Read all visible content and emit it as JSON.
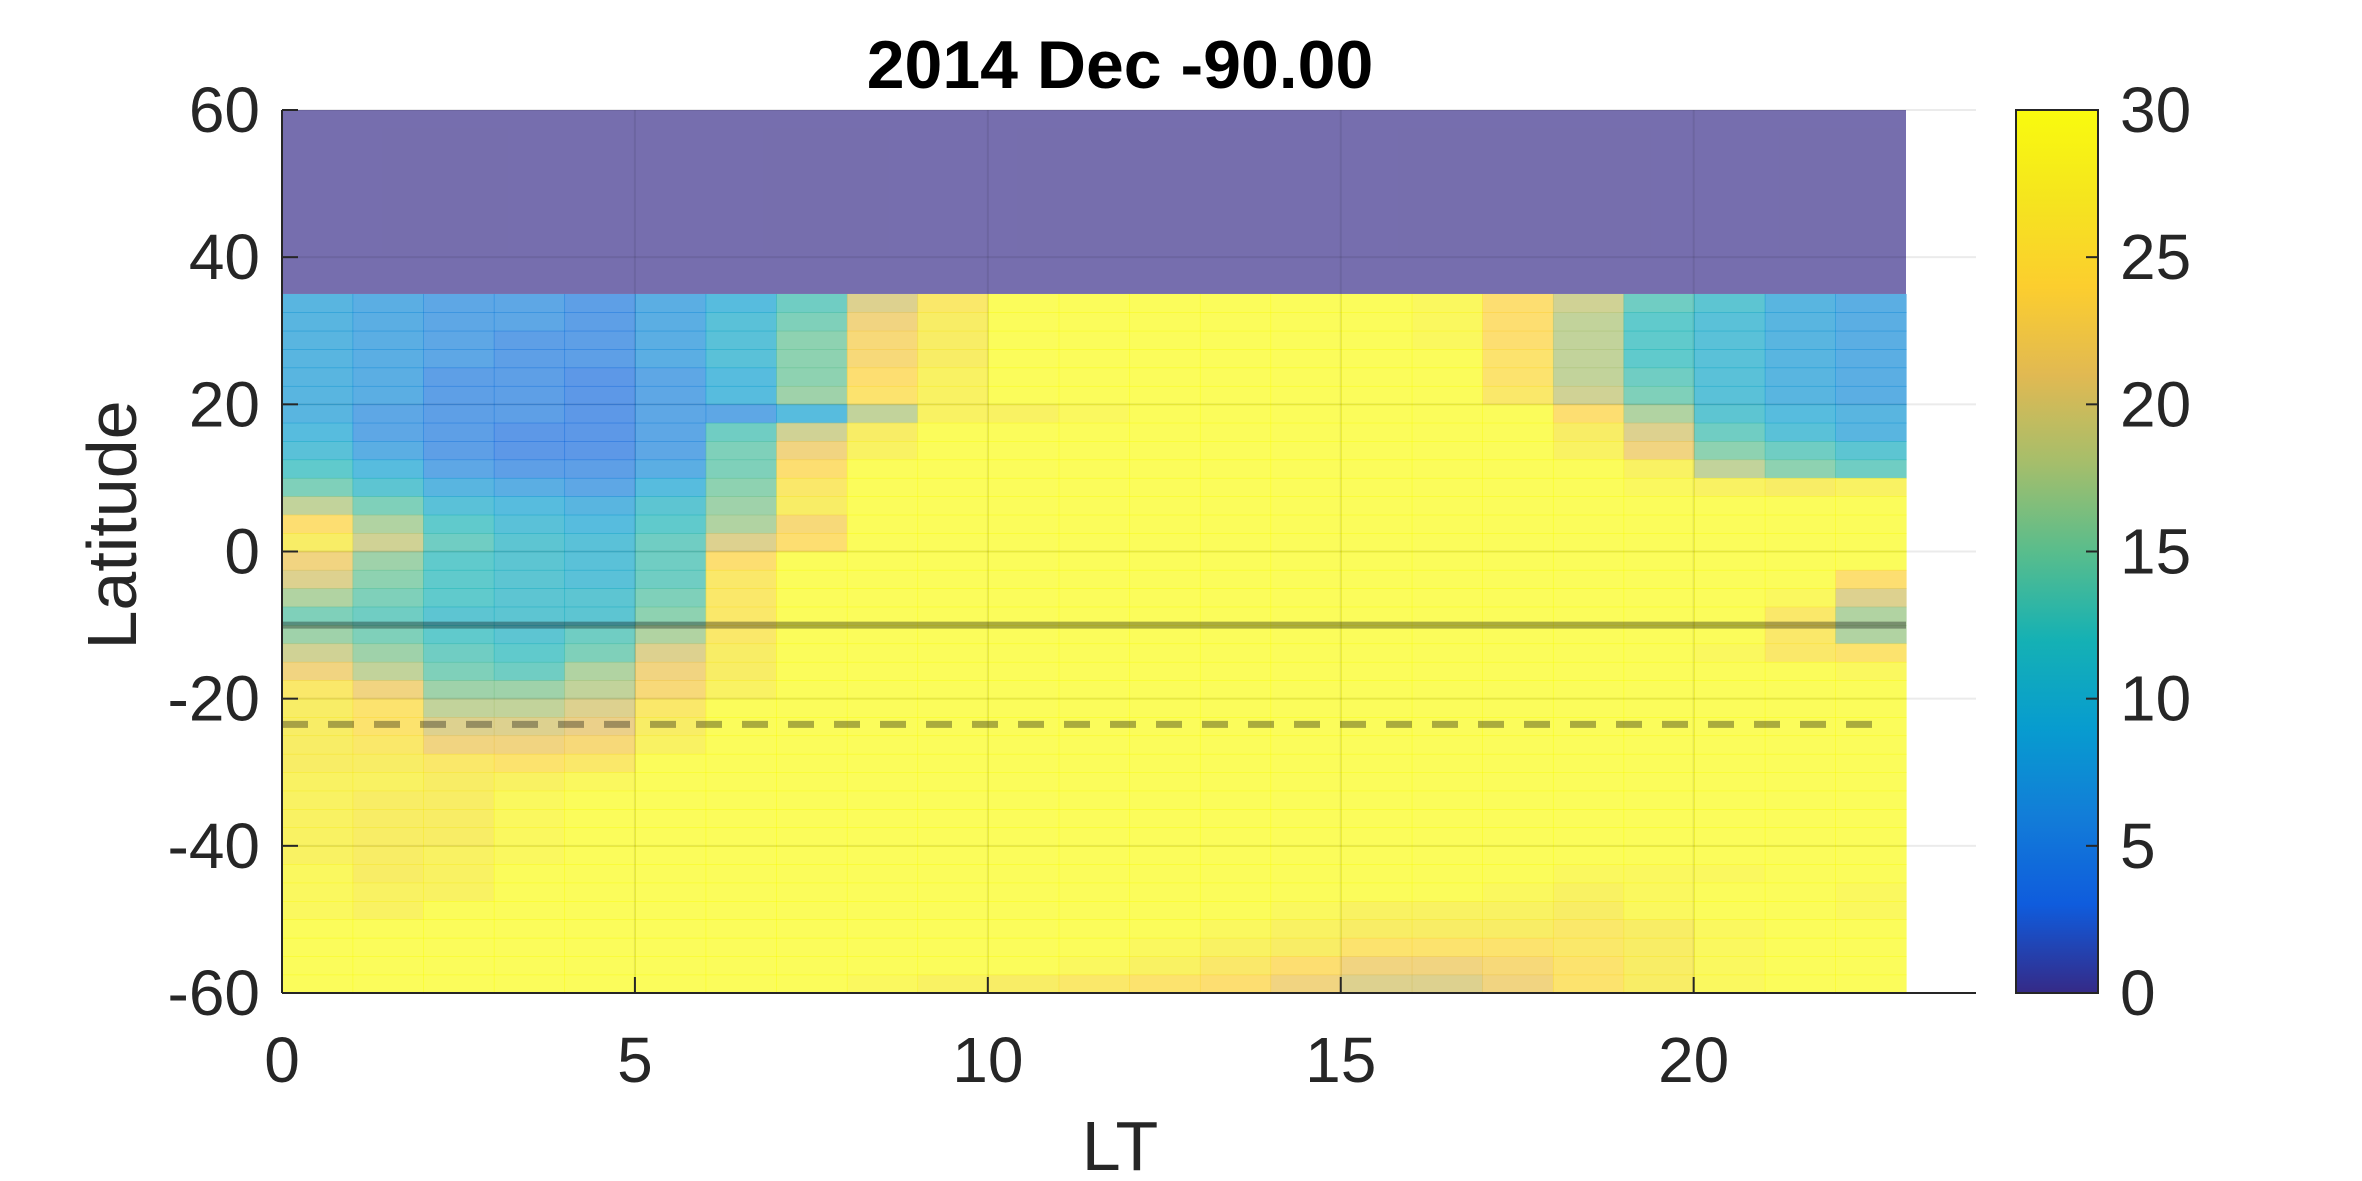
{
  "chart_data": {
    "type": "heatmap",
    "title": "2014 Dec   -90.00",
    "xlabel": "LT",
    "ylabel": "Latitude",
    "xlim": [
      0,
      24
    ],
    "ylim": [
      -60,
      60
    ],
    "x_ticks": [
      "0",
      "5",
      "10",
      "15",
      "20"
    ],
    "x_tick_values": [
      0,
      5,
      10,
      15,
      20
    ],
    "y_ticks": [
      "-60",
      "-40",
      "-20",
      "0",
      "20",
      "40",
      "60"
    ],
    "y_tick_values": [
      -60,
      -40,
      -20,
      0,
      20,
      40,
      60
    ],
    "colorbar": {
      "range": [
        0,
        30
      ],
      "ticks": [
        "0",
        "5",
        "10",
        "15",
        "20",
        "25",
        "30"
      ],
      "tick_values": [
        0,
        5,
        10,
        15,
        20,
        25,
        30
      ],
      "colormap": "parula"
    },
    "grid": true,
    "hours": [
      0,
      1,
      2,
      3,
      4,
      5,
      6,
      7,
      8,
      9,
      10,
      11,
      12,
      13,
      14,
      15,
      16,
      17,
      18,
      19,
      20,
      21,
      22
    ],
    "lat_bins": [
      35,
      32.5,
      30,
      27.5,
      25,
      22.5,
      20,
      17.5,
      15,
      12.5,
      10,
      7.5,
      5,
      2.5,
      0,
      -2.5,
      -5,
      -7.5,
      -10,
      -12.5,
      -15,
      -17.5,
      -20,
      -22.5,
      -25,
      -27.5,
      -30,
      -32.5,
      -35,
      -37.5,
      -40,
      -42.5,
      -45,
      -47.5,
      -50,
      -52.5,
      -55,
      -57.5
    ],
    "mask_above_lat": 35,
    "values": [
      [
        8,
        7,
        6,
        6,
        5,
        7,
        9,
        13,
        20,
        26,
        30,
        30,
        30,
        30,
        30,
        30,
        29,
        24,
        19,
        13,
        11,
        8,
        7
      ],
      [
        8,
        7,
        6,
        6,
        5,
        7,
        10,
        14,
        22,
        27,
        30,
        30,
        30,
        30,
        30,
        30,
        29,
        24,
        18,
        12,
        10,
        8,
        7
      ],
      [
        8,
        7,
        6,
        5,
        5,
        7,
        10,
        15,
        23,
        27,
        30,
        30,
        30,
        30,
        30,
        30,
        29,
        24,
        18,
        12,
        10,
        8,
        7
      ],
      [
        8,
        7,
        6,
        5,
        5,
        7,
        10,
        15,
        23,
        27,
        30,
        30,
        30,
        30,
        30,
        30,
        30,
        25,
        18,
        12,
        10,
        8,
        7
      ],
      [
        8,
        7,
        5,
        5,
        4,
        6,
        9,
        15,
        24,
        28,
        30,
        30,
        30,
        30,
        30,
        30,
        30,
        25,
        18,
        13,
        10,
        8,
        7
      ],
      [
        8,
        7,
        5,
        5,
        4,
        6,
        9,
        16,
        25,
        28,
        30,
        30,
        30,
        30,
        30,
        30,
        30,
        26,
        19,
        14,
        10,
        8,
        7
      ],
      [
        8,
        6,
        5,
        5,
        4,
        6,
        6,
        9,
        18,
        28,
        28,
        29,
        30,
        30,
        30,
        30,
        30,
        30,
        24,
        17,
        11,
        9,
        8
      ],
      [
        9,
        6,
        5,
        4,
        4,
        6,
        13,
        19,
        27,
        30,
        30,
        30,
        30,
        30,
        30,
        30,
        30,
        30,
        27,
        20,
        13,
        10,
        8
      ],
      [
        10,
        7,
        5,
        4,
        4,
        6,
        14,
        22,
        28,
        30,
        30,
        30,
        30,
        30,
        30,
        30,
        30,
        30,
        28,
        22,
        15,
        13,
        11
      ],
      [
        12,
        9,
        6,
        5,
        5,
        7,
        14,
        24,
        30,
        30,
        30,
        30,
        30,
        30,
        30,
        30,
        30,
        30,
        30,
        28,
        18,
        15,
        13
      ],
      [
        14,
        11,
        8,
        7,
        6,
        9,
        15,
        26,
        30,
        30,
        30,
        30,
        30,
        30,
        30,
        30,
        30,
        30,
        30,
        29,
        28,
        27,
        28
      ],
      [
        18,
        14,
        10,
        9,
        8,
        11,
        16,
        27,
        30,
        30,
        30,
        30,
        30,
        30,
        30,
        30,
        30,
        30,
        30,
        30,
        30,
        30,
        30
      ],
      [
        24,
        17,
        12,
        10,
        9,
        12,
        17,
        23,
        30,
        30,
        30,
        30,
        30,
        30,
        30,
        30,
        30,
        30,
        30,
        30,
        30,
        30,
        30
      ],
      [
        27,
        19,
        13,
        11,
        10,
        13,
        20,
        24,
        30,
        30,
        30,
        30,
        30,
        30,
        30,
        30,
        30,
        30,
        30,
        30,
        30,
        30,
        30
      ],
      [
        22,
        16,
        12,
        11,
        10,
        13,
        24,
        30,
        30,
        30,
        30,
        30,
        30,
        30,
        30,
        30,
        30,
        30,
        30,
        30,
        30,
        30,
        30
      ],
      [
        20,
        15,
        12,
        11,
        10,
        13,
        26,
        30,
        30,
        30,
        30,
        30,
        30,
        30,
        30,
        30,
        30,
        30,
        30,
        30,
        30,
        30,
        24
      ],
      [
        17,
        14,
        12,
        11,
        11,
        14,
        26,
        30,
        30,
        30,
        30,
        30,
        30,
        30,
        30,
        30,
        30,
        30,
        30,
        30,
        30,
        29,
        20
      ],
      [
        14,
        13,
        11,
        11,
        11,
        15,
        26,
        30,
        30,
        30,
        30,
        30,
        30,
        30,
        30,
        30,
        30,
        30,
        30,
        30,
        30,
        26,
        17
      ],
      [
        16,
        14,
        12,
        11,
        13,
        17,
        26,
        30,
        30,
        30,
        30,
        30,
        30,
        30,
        30,
        30,
        30,
        30,
        30,
        30,
        30,
        26,
        17
      ],
      [
        19,
        16,
        13,
        12,
        14,
        20,
        27,
        30,
        30,
        30,
        30,
        30,
        30,
        30,
        30,
        30,
        30,
        30,
        30,
        30,
        29,
        26,
        25
      ],
      [
        22,
        18,
        14,
        13,
        17,
        22,
        27,
        30,
        30,
        30,
        30,
        30,
        30,
        30,
        30,
        30,
        30,
        30,
        30,
        30,
        30,
        30,
        29
      ],
      [
        26,
        22,
        16,
        16,
        18,
        23,
        28,
        30,
        30,
        30,
        30,
        30,
        30,
        30,
        30,
        30,
        30,
        30,
        30,
        30,
        30,
        30,
        30
      ],
      [
        27,
        25,
        18,
        18,
        20,
        26,
        30,
        30,
        30,
        30,
        30,
        30,
        30,
        30,
        30,
        30,
        30,
        30,
        30,
        30,
        30,
        30,
        30
      ],
      [
        27,
        25,
        20,
        20,
        21,
        27,
        30,
        30,
        30,
        30,
        30,
        30,
        30,
        30,
        30,
        30,
        30,
        30,
        30,
        30,
        30,
        30,
        30
      ],
      [
        27,
        26,
        22,
        22,
        23,
        28,
        30,
        30,
        30,
        30,
        30,
        30,
        30,
        30,
        30,
        30,
        30,
        30,
        30,
        30,
        30,
        30,
        30
      ],
      [
        27,
        27,
        26,
        25,
        26,
        30,
        30,
        30,
        30,
        30,
        30,
        30,
        30,
        30,
        30,
        30,
        30,
        30,
        30,
        30,
        30,
        30,
        30
      ],
      [
        28,
        28,
        27,
        28,
        29,
        30,
        30,
        30,
        30,
        30,
        30,
        30,
        30,
        30,
        30,
        30,
        30,
        30,
        30,
        30,
        30,
        30,
        30
      ],
      [
        28,
        27,
        27,
        29,
        30,
        30,
        30,
        30,
        30,
        30,
        30,
        30,
        30,
        30,
        30,
        30,
        30,
        30,
        30,
        30,
        30,
        30,
        30
      ],
      [
        28,
        27,
        27,
        29,
        30,
        30,
        30,
        30,
        30,
        30,
        30,
        30,
        30,
        30,
        30,
        30,
        30,
        30,
        30,
        30,
        30,
        30,
        30
      ],
      [
        28,
        27,
        27,
        29,
        30,
        30,
        30,
        30,
        30,
        30,
        30,
        30,
        30,
        30,
        30,
        30,
        30,
        30,
        30,
        30,
        30,
        30,
        30
      ],
      [
        28,
        27,
        28,
        29,
        30,
        30,
        30,
        30,
        30,
        30,
        30,
        30,
        30,
        30,
        30,
        30,
        30,
        30,
        30,
        30,
        30,
        30,
        30
      ],
      [
        29,
        27,
        28,
        30,
        30,
        30,
        30,
        30,
        30,
        30,
        30,
        30,
        30,
        30,
        30,
        30,
        30,
        30,
        29,
        29,
        29,
        30,
        30
      ],
      [
        29,
        28,
        28,
        30,
        30,
        30,
        30,
        30,
        30,
        30,
        30,
        30,
        30,
        30,
        30,
        30,
        30,
        29,
        28,
        29,
        30,
        30,
        29
      ],
      [
        29,
        28,
        30,
        30,
        30,
        30,
        30,
        30,
        30,
        30,
        30,
        30,
        30,
        30,
        29,
        28,
        28,
        28,
        27,
        29,
        30,
        30,
        29
      ],
      [
        30,
        30,
        30,
        30,
        30,
        30,
        30,
        30,
        30,
        30,
        30,
        30,
        30,
        29,
        28,
        27,
        27,
        27,
        26,
        27,
        29,
        30,
        30
      ],
      [
        30,
        30,
        30,
        30,
        30,
        30,
        30,
        30,
        30,
        30,
        30,
        30,
        29,
        28,
        27,
        25,
        25,
        25,
        26,
        27,
        29,
        30,
        30
      ],
      [
        30,
        30,
        30,
        30,
        30,
        30,
        30,
        30,
        30,
        30,
        30,
        29,
        28,
        26,
        24,
        22,
        22,
        23,
        25,
        27,
        29,
        30,
        30
      ],
      [
        30,
        30,
        30,
        30,
        30,
        30,
        30,
        30,
        29,
        28,
        27,
        26,
        25,
        24,
        22,
        20,
        20,
        22,
        25,
        27,
        29,
        30,
        30
      ]
    ],
    "lines": [
      {
        "latitude": -10,
        "style": "solid"
      },
      {
        "latitude": -23.5,
        "style": "dashed"
      }
    ]
  }
}
